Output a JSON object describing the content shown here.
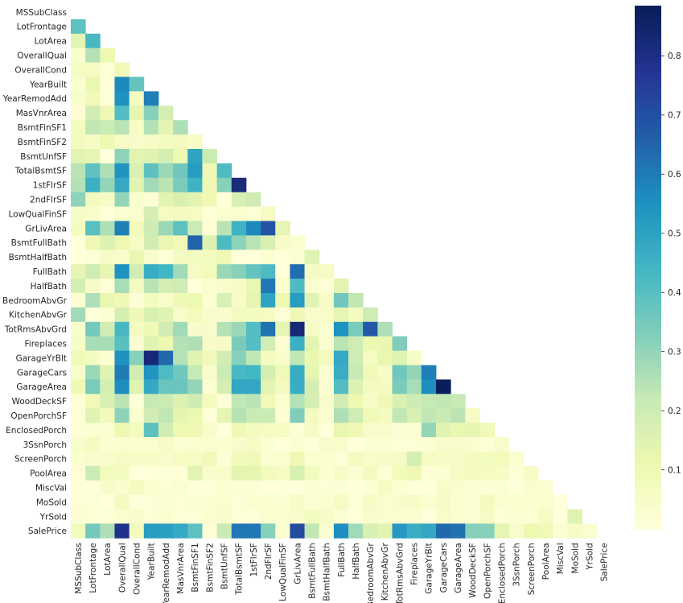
{
  "chart_data": {
    "type": "heatmap",
    "title": "",
    "xlabel": "",
    "ylabel": "",
    "mask": "upper-triangle-including-diagonal",
    "colormap": "YlGnBu",
    "colorbar": {
      "range": [
        0.0,
        0.885
      ],
      "ticks": [
        0.1,
        0.2,
        0.3,
        0.4,
        0.5,
        0.6,
        0.7,
        0.8
      ]
    },
    "labels": [
      "MSSubClass",
      "LotFrontage",
      "LotArea",
      "OverallQual",
      "OverallCond",
      "YearBuilt",
      "YearRemodAdd",
      "MasVnrArea",
      "BsmtFinSF1",
      "BsmtFinSF2",
      "BsmtUnfSF",
      "TotalBsmtSF",
      "1stFlrSF",
      "2ndFlrSF",
      "LowQualFinSF",
      "GrLivArea",
      "BsmtFullBath",
      "BsmtHalfBath",
      "FullBath",
      "HalfBath",
      "BedroomAbvGr",
      "KitchenAbvGr",
      "TotRmsAbvGrd",
      "Fireplaces",
      "GarageYrBlt",
      "GarageCars",
      "GarageArea",
      "WoodDeckSF",
      "OpenPorchSF",
      "EnclosedPorch",
      "3SsnPorch",
      "ScreenPorch",
      "PoolArea",
      "MiscVal",
      "MoSold",
      "YrSold",
      "SalePrice"
    ],
    "matrix": [
      [],
      [
        0.39
      ],
      [
        0.14,
        0.43
      ],
      [
        0.03,
        0.25,
        0.11
      ],
      [
        0.06,
        0.06,
        0.01,
        0.09
      ],
      [
        0.03,
        0.12,
        0.01,
        0.57,
        0.38
      ],
      [
        0.04,
        0.09,
        0.01,
        0.55,
        0.07,
        0.59
      ],
      [
        0.02,
        0.19,
        0.1,
        0.41,
        0.13,
        0.32,
        0.18
      ],
      [
        0.07,
        0.23,
        0.21,
        0.24,
        0.05,
        0.25,
        0.13,
        0.26
      ],
      [
        0.07,
        0.05,
        0.11,
        0.06,
        0.04,
        0.05,
        0.07,
        0.07,
        0.05
      ],
      [
        0.14,
        0.13,
        0.0,
        0.31,
        0.14,
        0.15,
        0.18,
        0.11,
        0.5,
        0.21
      ],
      [
        0.24,
        0.39,
        0.26,
        0.54,
        0.17,
        0.39,
        0.29,
        0.36,
        0.52,
        0.1,
        0.42
      ],
      [
        0.25,
        0.46,
        0.3,
        0.48,
        0.14,
        0.28,
        0.24,
        0.34,
        0.45,
        0.1,
        0.32,
        0.82
      ],
      [
        0.31,
        0.08,
        0.05,
        0.3,
        0.03,
        0.01,
        0.14,
        0.17,
        0.14,
        0.1,
        0.0,
        0.17,
        0.2
      ],
      [
        0.05,
        0.04,
        0.0,
        0.03,
        0.03,
        0.18,
        0.06,
        0.07,
        0.06,
        0.01,
        0.03,
        0.03,
        0.01,
        0.06
      ],
      [
        0.07,
        0.4,
        0.26,
        0.59,
        0.08,
        0.2,
        0.29,
        0.39,
        0.21,
        0.01,
        0.24,
        0.45,
        0.57,
        0.69,
        0.13
      ],
      [
        0.0,
        0.1,
        0.16,
        0.11,
        0.05,
        0.19,
        0.12,
        0.09,
        0.65,
        0.16,
        0.42,
        0.31,
        0.24,
        0.17,
        0.05,
        0.03
      ],
      [
        0.0,
        0.01,
        0.05,
        0.04,
        0.12,
        0.04,
        0.01,
        0.07,
        0.07,
        0.07,
        0.1,
        0.0,
        0.0,
        0.02,
        0.0,
        0.02,
        0.15
      ],
      [
        0.13,
        0.2,
        0.13,
        0.55,
        0.19,
        0.47,
        0.44,
        0.28,
        0.06,
        0.08,
        0.29,
        0.32,
        0.38,
        0.42,
        0.0,
        0.63,
        0.06,
        0.05
      ],
      [
        0.18,
        0.05,
        0.01,
        0.27,
        0.06,
        0.24,
        0.18,
        0.2,
        0.0,
        0.03,
        0.04,
        0.05,
        0.12,
        0.61,
        0.03,
        0.42,
        0.03,
        0.01,
        0.14
      ],
      [
        0.02,
        0.26,
        0.12,
        0.1,
        0.01,
        0.07,
        0.04,
        0.1,
        0.11,
        0.02,
        0.17,
        0.05,
        0.13,
        0.5,
        0.11,
        0.52,
        0.15,
        0.05,
        0.36,
        0.23
      ],
      [
        0.28,
        0.0,
        0.02,
        0.18,
        0.09,
        0.17,
        0.15,
        0.04,
        0.08,
        0.04,
        0.03,
        0.07,
        0.07,
        0.06,
        0.01,
        0.1,
        0.04,
        0.04,
        0.13,
        0.07,
        0.2
      ],
      [
        0.04,
        0.35,
        0.19,
        0.43,
        0.06,
        0.1,
        0.19,
        0.28,
        0.04,
        0.04,
        0.25,
        0.29,
        0.41,
        0.62,
        0.13,
        0.83,
        0.05,
        0.02,
        0.55,
        0.34,
        0.68,
        0.26
      ],
      [
        0.05,
        0.27,
        0.27,
        0.4,
        0.02,
        0.15,
        0.11,
        0.25,
        0.26,
        0.05,
        0.05,
        0.34,
        0.41,
        0.19,
        0.02,
        0.46,
        0.14,
        0.03,
        0.24,
        0.2,
        0.11,
        0.12,
        0.33
      ],
      [
        0.09,
        0.07,
        0.02,
        0.55,
        0.32,
        0.83,
        0.64,
        0.25,
        0.15,
        0.09,
        0.19,
        0.32,
        0.23,
        0.07,
        0.04,
        0.23,
        0.12,
        0.08,
        0.48,
        0.2,
        0.06,
        0.12,
        0.15,
        0.05
      ],
      [
        0.04,
        0.29,
        0.15,
        0.6,
        0.19,
        0.54,
        0.42,
        0.36,
        0.22,
        0.04,
        0.21,
        0.43,
        0.44,
        0.18,
        0.09,
        0.47,
        0.13,
        0.02,
        0.47,
        0.22,
        0.09,
        0.05,
        0.36,
        0.3,
        0.59
      ],
      [
        0.1,
        0.34,
        0.18,
        0.56,
        0.15,
        0.48,
        0.37,
        0.37,
        0.3,
        0.02,
        0.18,
        0.49,
        0.49,
        0.14,
        0.07,
        0.47,
        0.18,
        0.02,
        0.41,
        0.16,
        0.07,
        0.06,
        0.34,
        0.27,
        0.56,
        0.88
      ],
      [
        0.01,
        0.09,
        0.17,
        0.24,
        0.0,
        0.22,
        0.21,
        0.16,
        0.2,
        0.07,
        0.01,
        0.23,
        0.24,
        0.09,
        0.03,
        0.25,
        0.18,
        0.04,
        0.19,
        0.11,
        0.05,
        0.09,
        0.17,
        0.2,
        0.22,
        0.23,
        0.22
      ],
      [
        0.01,
        0.15,
        0.08,
        0.31,
        0.03,
        0.19,
        0.23,
        0.13,
        0.11,
        0.0,
        0.13,
        0.25,
        0.21,
        0.21,
        0.02,
        0.33,
        0.07,
        0.03,
        0.26,
        0.2,
        0.09,
        0.07,
        0.23,
        0.17,
        0.23,
        0.21,
        0.24,
        0.06
      ],
      [
        0.01,
        0.02,
        0.02,
        0.11,
        0.07,
        0.39,
        0.19,
        0.11,
        0.1,
        0.04,
        0.0,
        0.1,
        0.07,
        0.06,
        0.06,
        0.01,
        0.05,
        0.0,
        0.12,
        0.1,
        0.04,
        0.04,
        0.01,
        0.02,
        0.3,
        0.15,
        0.12,
        0.13,
        0.09
      ],
      [
        0.04,
        0.07,
        0.02,
        0.03,
        0.03,
        0.03,
        0.05,
        0.02,
        0.03,
        0.03,
        0.02,
        0.04,
        0.06,
        0.02,
        0.0,
        0.02,
        0.0,
        0.04,
        0.04,
        0.0,
        0.02,
        0.02,
        0.01,
        0.01,
        0.02,
        0.04,
        0.04,
        0.03,
        0.01,
        0.04
      ],
      [
        0.03,
        0.04,
        0.04,
        0.06,
        0.05,
        0.05,
        0.04,
        0.06,
        0.06,
        0.09,
        0.01,
        0.08,
        0.09,
        0.02,
        0.03,
        0.1,
        0.02,
        0.03,
        0.01,
        0.07,
        0.04,
        0.05,
        0.06,
        0.18,
        0.06,
        0.05,
        0.05,
        0.07,
        0.07,
        0.08,
        0.03
      ],
      [
        0.01,
        0.21,
        0.08,
        0.07,
        0.0,
        0.0,
        0.01,
        0.01,
        0.14,
        0.04,
        0.04,
        0.13,
        0.13,
        0.08,
        0.06,
        0.17,
        0.07,
        0.02,
        0.05,
        0.02,
        0.07,
        0.01,
        0.08,
        0.1,
        0.01,
        0.02,
        0.06,
        0.07,
        0.06,
        0.05,
        0.01,
        0.05
      ],
      [
        0.01,
        0.0,
        0.04,
        0.03,
        0.07,
        0.03,
        0.01,
        0.03,
        0.0,
        0.0,
        0.02,
        0.02,
        0.01,
        0.0,
        0.0,
        0.0,
        0.02,
        0.01,
        0.01,
        0.0,
        0.01,
        0.06,
        0.02,
        0.0,
        0.0,
        0.04,
        0.03,
        0.01,
        0.01,
        0.02,
        0.0,
        0.03,
        0.03
      ],
      [
        0.01,
        0.01,
        0.0,
        0.07,
        0.0,
        0.01,
        0.02,
        0.01,
        0.02,
        0.02,
        0.03,
        0.01,
        0.03,
        0.03,
        0.02,
        0.05,
        0.02,
        0.03,
        0.06,
        0.01,
        0.05,
        0.03,
        0.04,
        0.05,
        0.03,
        0.05,
        0.02,
        0.02,
        0.07,
        0.03,
        0.03,
        0.02,
        0.03,
        0.0
      ],
      [
        0.02,
        0.01,
        0.01,
        0.03,
        0.04,
        0.01,
        0.03,
        0.01,
        0.01,
        0.03,
        0.04,
        0.01,
        0.01,
        0.03,
        0.03,
        0.04,
        0.07,
        0.05,
        0.02,
        0.0,
        0.04,
        0.03,
        0.03,
        0.02,
        0.0,
        0.04,
        0.03,
        0.02,
        0.06,
        0.01,
        0.02,
        0.01,
        0.06,
        0.0,
        0.15
      ],
      [
        0.08,
        0.35,
        0.26,
        0.79,
        0.08,
        0.52,
        0.51,
        0.48,
        0.39,
        0.01,
        0.21,
        0.61,
        0.61,
        0.32,
        0.03,
        0.71,
        0.23,
        0.02,
        0.56,
        0.28,
        0.17,
        0.14,
        0.53,
        0.47,
        0.49,
        0.64,
        0.62,
        0.32,
        0.32,
        0.13,
        0.04,
        0.11,
        0.09,
        0.02,
        0.05,
        0.03
      ]
    ]
  }
}
